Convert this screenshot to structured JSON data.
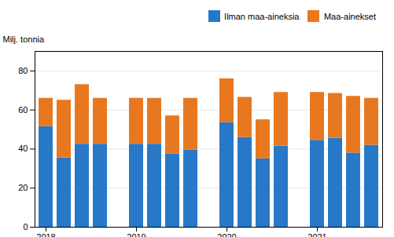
{
  "chart_data": {
    "type": "bar",
    "stacked": true,
    "categories": [
      "2018",
      null,
      null,
      null,
      "2019",
      null,
      null,
      null,
      "2020",
      null,
      null,
      null,
      "2021",
      null,
      null,
      null
    ],
    "series": [
      {
        "name": "Ilman maa-aineksia",
        "color": "#2878C8",
        "values": [
          51.5,
          35.5,
          42.5,
          42.5,
          42.5,
          42.5,
          37.5,
          39.5,
          53.5,
          46.0,
          35.0,
          41.5,
          44.5,
          45.5,
          38.0,
          42.0
        ]
      },
      {
        "name": "Maa-ainekset",
        "color": "#E87820",
        "values": [
          14.5,
          29.5,
          30.5,
          23.5,
          23.5,
          23.5,
          19.5,
          26.5,
          22.5,
          20.5,
          20.0,
          27.5,
          24.5,
          23.0,
          29.0,
          24.0
        ]
      }
    ],
    "y_label": "Milj. tonnia",
    "ylim": [
      0,
      90
    ],
    "yticks": [
      0,
      20,
      40,
      60,
      80
    ],
    "grid": true,
    "legend": "upper right"
  }
}
